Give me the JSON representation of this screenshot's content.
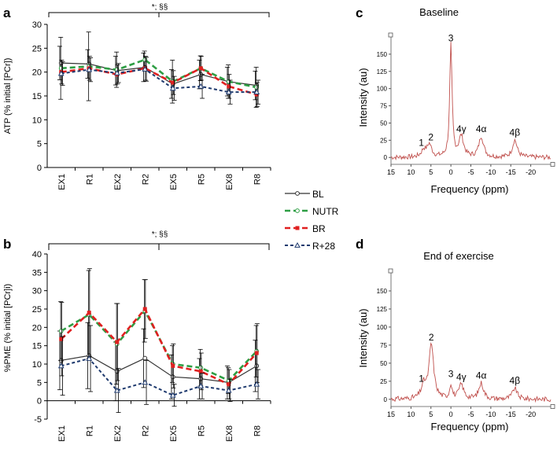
{
  "figure": {
    "panel_labels": [
      "a",
      "b",
      "c",
      "d"
    ],
    "significance": "*; §§"
  },
  "colors": {
    "BL": "#333333",
    "NUTR": "#2e9e44",
    "BR": "#e02020",
    "R+28": "#1f3a6e",
    "spectrum": "#c0504d"
  },
  "chart_data": [
    {
      "id": "a",
      "type": "line",
      "ylabel": "ATP (% initial [PCr])",
      "categories": [
        "EX1",
        "R1",
        "EX2",
        "R2",
        "EX5",
        "R5",
        "EX8",
        "R8"
      ],
      "ylim": [
        0,
        30
      ],
      "yticks": [
        0,
        5,
        10,
        15,
        20,
        25,
        30
      ],
      "series": [
        {
          "name": "BL",
          "values": [
            21.9,
            21.7,
            20.3,
            21.0,
            17.5,
            19.5,
            18.0,
            17.2
          ],
          "err": [
            3.5,
            3.0,
            3.0,
            3.0,
            3.0,
            3.0,
            3.0,
            3.0
          ]
        },
        {
          "name": "NUTR",
          "values": [
            20.8,
            21.2,
            20.5,
            22.6,
            18.0,
            20.8,
            18.0,
            16.8
          ],
          "err": [
            6.5,
            7.2,
            3.7,
            1.8,
            4.5,
            2.6,
            3.5,
            4.2
          ]
        },
        {
          "name": "BR",
          "values": [
            20.0,
            20.8,
            19.5,
            20.8,
            17.8,
            20.8,
            17.0,
            15.3
          ],
          "err": [
            2.5,
            2.5,
            2.0,
            2.5,
            2.5,
            2.5,
            2.5,
            2.5
          ]
        },
        {
          "name": "R+28",
          "values": [
            19.7,
            20.5,
            19.8,
            20.6,
            16.6,
            17.0,
            15.8,
            15.8
          ],
          "err": [
            2.5,
            2.5,
            2.0,
            2.5,
            2.5,
            2.5,
            2.5,
            2.5
          ]
        }
      ]
    },
    {
      "id": "b",
      "type": "line",
      "ylabel": "%PME (% initial [PCr]i)",
      "categories": [
        "EX1",
        "R1",
        "EX2",
        "R2",
        "EX5",
        "R5",
        "EX8",
        "R8"
      ],
      "ylim": [
        -5,
        40
      ],
      "yticks": [
        -5,
        0,
        5,
        10,
        15,
        20,
        25,
        30,
        35,
        40
      ],
      "series": [
        {
          "name": "BL",
          "values": [
            11.0,
            12.3,
            8.0,
            11.6,
            6.5,
            6.0,
            5.0,
            9.5
          ],
          "err": [
            8.0,
            9.0,
            8.0,
            8.0,
            6.0,
            5.5,
            4.5,
            7.0
          ]
        },
        {
          "name": "NUTR",
          "values": [
            19.0,
            23.5,
            15.5,
            24.5,
            10.0,
            9.0,
            5.5,
            13.5
          ],
          "err": [
            8.0,
            12.0,
            11.0,
            8.5,
            5.0,
            5.0,
            3.5,
            7.0
          ]
        },
        {
          "name": "BR",
          "values": [
            16.8,
            24.0,
            16.0,
            25.0,
            9.5,
            8.0,
            4.5,
            13.0
          ],
          "err": [
            10.0,
            12.0,
            10.5,
            8.0,
            6.0,
            5.0,
            4.0,
            8.0
          ]
        },
        {
          "name": "R+28",
          "values": [
            9.5,
            11.5,
            2.8,
            5.0,
            1.5,
            4.0,
            2.8,
            4.5
          ],
          "err": [
            8.0,
            9.0,
            6.0,
            6.0,
            3.0,
            3.5,
            3.0,
            4.0
          ]
        }
      ]
    },
    {
      "id": "c",
      "type": "line",
      "title": "Baseline",
      "xlabel": "Frequency (ppm)",
      "ylabel": "Intensity (au)",
      "xlim": [
        15,
        -25
      ],
      "xticks": [
        15,
        10,
        5,
        0,
        -5,
        -10,
        -15,
        -20
      ],
      "ylim": [
        -10,
        175
      ],
      "yticks": [
        0,
        25,
        50,
        75,
        100,
        125,
        150
      ],
      "peaks": [
        {
          "label": "1",
          "ppm": 6.8,
          "height": 10
        },
        {
          "label": "2",
          "ppm": 5.4,
          "height": 18
        },
        {
          "label": "3",
          "ppm": 0,
          "height": 162
        },
        {
          "label": "4γ",
          "ppm": -2.6,
          "height": 30
        },
        {
          "label": "4α",
          "ppm": -7.6,
          "height": 30
        },
        {
          "label": "4β",
          "ppm": -16.0,
          "height": 25
        }
      ]
    },
    {
      "id": "d",
      "type": "line",
      "title": "End of exercise",
      "xlabel": "Frequency (ppm)",
      "ylabel": "Intensity (au)",
      "xlim": [
        15,
        -25
      ],
      "xticks": [
        15,
        10,
        5,
        0,
        -5,
        -10,
        -15,
        -20
      ],
      "ylim": [
        -10,
        175
      ],
      "yticks": [
        0,
        25,
        50,
        75,
        100,
        125,
        150
      ],
      "peaks": [
        {
          "label": "1",
          "ppm": 6.8,
          "height": 18
        },
        {
          "label": "2",
          "ppm": 4.9,
          "height": 75
        },
        {
          "label": "3",
          "ppm": 0,
          "height": 20
        },
        {
          "label": "4γ",
          "ppm": -2.6,
          "height": 20
        },
        {
          "label": "4α",
          "ppm": -7.6,
          "height": 22
        },
        {
          "label": "4β",
          "ppm": -16.0,
          "height": 15
        }
      ]
    }
  ],
  "legend": [
    {
      "name": "BL"
    },
    {
      "name": "NUTR"
    },
    {
      "name": "BR"
    },
    {
      "name": "R+28"
    }
  ]
}
